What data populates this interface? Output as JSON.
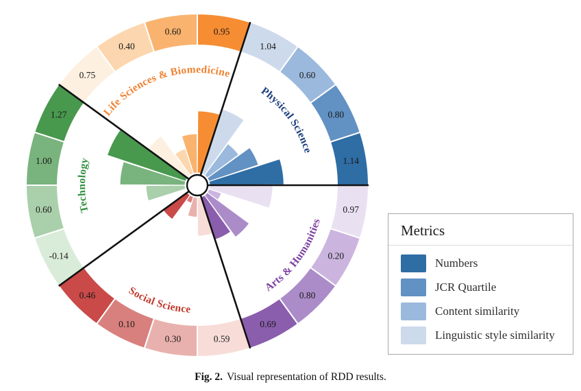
{
  "figure": {
    "caption_label": "Fig. 2.",
    "caption_text": "Visual representation of RDD results."
  },
  "legend": {
    "title": "Metrics",
    "items": [
      {
        "label": "Numbers",
        "color": "#2f6da5"
      },
      {
        "label": "JCR Quartile",
        "color": "#6291c3"
      },
      {
        "label": "Content similarity",
        "color": "#9bb9dd"
      },
      {
        "label": "Linguistic style similarity",
        "color": "#cddaec"
      }
    ]
  },
  "chart_data": {
    "type": "polar-rose",
    "title": "Visual representation of RDD results",
    "metrics": [
      "Numbers",
      "JCR Quartile",
      "Content similarity",
      "Linguistic style similarity"
    ],
    "sector_span_degrees": 72,
    "bar_span_degrees": 18,
    "legend_position": "right",
    "groups": [
      {
        "name": "Physical Science",
        "label_color": "#1c3e7e",
        "label_flow": "cw",
        "start_angle": 0,
        "bars": [
          {
            "metric": "Numbers",
            "value": 1.14,
            "color": "#2f6da5"
          },
          {
            "metric": "JCR Quartile",
            "value": 0.8,
            "color": "#6291c3"
          },
          {
            "metric": "Content similarity",
            "value": 0.6,
            "color": "#9bb9dd"
          },
          {
            "metric": "Linguistic style similarity",
            "value": 1.04,
            "color": "#cddaec"
          }
        ]
      },
      {
        "name": "Life Sciences & Biomedicine",
        "label_color": "#f08232",
        "label_flow": "cw",
        "start_angle": 72,
        "bars": [
          {
            "metric": "Numbers",
            "value": 0.95,
            "color": "#f68d33"
          },
          {
            "metric": "JCR Quartile",
            "value": 0.6,
            "color": "#f9b36e"
          },
          {
            "metric": "Content similarity",
            "value": 0.4,
            "color": "#fcd6ae"
          },
          {
            "metric": "Linguistic style similarity",
            "value": 0.75,
            "color": "#fdf0e0"
          }
        ]
      },
      {
        "name": "Technology",
        "label_color": "#2f8f3f",
        "label_flow": "cw",
        "start_angle": 144,
        "bars": [
          {
            "metric": "Numbers",
            "value": 1.27,
            "color": "#48984d"
          },
          {
            "metric": "JCR Quartile",
            "value": 1.0,
            "color": "#79b37d"
          },
          {
            "metric": "Content similarity",
            "value": 0.6,
            "color": "#a9cfab"
          },
          {
            "metric": "Linguistic style similarity",
            "value": -0.14,
            "color": "#d9ecd9"
          }
        ]
      },
      {
        "name": "Social Science",
        "label_color": "#c23b2e",
        "label_flow": "ccw",
        "start_angle": 216,
        "bars": [
          {
            "metric": "Numbers",
            "value": 0.46,
            "color": "#c94a48"
          },
          {
            "metric": "JCR Quartile",
            "value": 0.1,
            "color": "#d8807d"
          },
          {
            "metric": "Content similarity",
            "value": 0.3,
            "color": "#e9b1ad"
          },
          {
            "metric": "Linguistic style similarity",
            "value": 0.59,
            "color": "#f7dcd8"
          }
        ]
      },
      {
        "name": "Arts & Humanities",
        "label_color": "#7c3fa0",
        "label_flow": "ccw",
        "start_angle": 288,
        "bars": [
          {
            "metric": "Numbers",
            "value": 0.69,
            "color": "#8a5dad"
          },
          {
            "metric": "JCR Quartile",
            "value": 0.8,
            "color": "#ab8cc9"
          },
          {
            "metric": "Content similarity",
            "value": 0.2,
            "color": "#cbb5df"
          },
          {
            "metric": "Linguistic style similarity",
            "value": 0.97,
            "color": "#e9e1f2"
          }
        ]
      }
    ]
  }
}
